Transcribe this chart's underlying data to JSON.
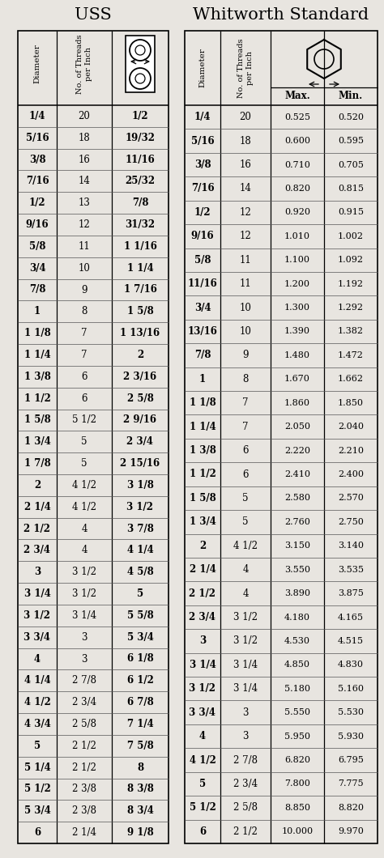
{
  "title_left": "USS",
  "title_right": "Whitworth Standard",
  "bg_color": "#e8e5e0",
  "uss_rows": [
    [
      "1/4",
      "20",
      "1/2"
    ],
    [
      "5/16",
      "18",
      "19/32"
    ],
    [
      "3/8",
      "16",
      "11/16"
    ],
    [
      "7/16",
      "14",
      "25/32"
    ],
    [
      "1/2",
      "13",
      "7/8"
    ],
    [
      "9/16",
      "12",
      "31/32"
    ],
    [
      "5/8",
      "11",
      "1 1/16"
    ],
    [
      "3/4",
      "10",
      "1 1/4"
    ],
    [
      "7/8",
      "9",
      "1 7/16"
    ],
    [
      "1",
      "8",
      "1 5/8"
    ],
    [
      "1 1/8",
      "7",
      "1 13/16"
    ],
    [
      "1 1/4",
      "7",
      "2"
    ],
    [
      "1 3/8",
      "6",
      "2 3/16"
    ],
    [
      "1 1/2",
      "6",
      "2 5/8"
    ],
    [
      "1 5/8",
      "5 1/2",
      "2 9/16"
    ],
    [
      "1 3/4",
      "5",
      "2 3/4"
    ],
    [
      "1 7/8",
      "5",
      "2 15/16"
    ],
    [
      "2",
      "4 1/2",
      "3 1/8"
    ],
    [
      "2 1/4",
      "4 1/2",
      "3 1/2"
    ],
    [
      "2 1/2",
      "4",
      "3 7/8"
    ],
    [
      "2 3/4",
      "4",
      "4 1/4"
    ],
    [
      "3",
      "3 1/2",
      "4 5/8"
    ],
    [
      "3 1/4",
      "3 1/2",
      "5"
    ],
    [
      "3 1/2",
      "3 1/4",
      "5 5/8"
    ],
    [
      "3 3/4",
      "3",
      "5 3/4"
    ],
    [
      "4",
      "3",
      "6 1/8"
    ],
    [
      "4 1/4",
      "2 7/8",
      "6 1/2"
    ],
    [
      "4 1/2",
      "2 3/4",
      "6 7/8"
    ],
    [
      "4 3/4",
      "2 5/8",
      "7 1/4"
    ],
    [
      "5",
      "2 1/2",
      "7 5/8"
    ],
    [
      "5 1/4",
      "2 1/2",
      "8"
    ],
    [
      "5 1/2",
      "2 3/8",
      "8 3/8"
    ],
    [
      "5 3/4",
      "2 3/8",
      "8 3/4"
    ],
    [
      "6",
      "2 1/4",
      "9 1/8"
    ]
  ],
  "ww_rows": [
    [
      "1/4",
      "20",
      "0.525",
      "0.520"
    ],
    [
      "5/16",
      "18",
      "0.600",
      "0.595"
    ],
    [
      "3/8",
      "16",
      "0.710",
      "0.705"
    ],
    [
      "7/16",
      "14",
      "0.820",
      "0.815"
    ],
    [
      "1/2",
      "12",
      "0.920",
      "0.915"
    ],
    [
      "9/16",
      "12",
      "1.010",
      "1.002"
    ],
    [
      "5/8",
      "11",
      "1.100",
      "1.092"
    ],
    [
      "11/16",
      "11",
      "1.200",
      "1.192"
    ],
    [
      "3/4",
      "10",
      "1.300",
      "1.292"
    ],
    [
      "13/16",
      "10",
      "1.390",
      "1.382"
    ],
    [
      "7/8",
      "9",
      "1.480",
      "1.472"
    ],
    [
      "1",
      "8",
      "1.670",
      "1.662"
    ],
    [
      "1 1/8",
      "7",
      "1.860",
      "1.850"
    ],
    [
      "1 1/4",
      "7",
      "2.050",
      "2.040"
    ],
    [
      "1 3/8",
      "6",
      "2.220",
      "2.210"
    ],
    [
      "1 1/2",
      "6",
      "2.410",
      "2.400"
    ],
    [
      "1 5/8",
      "5",
      "2.580",
      "2.570"
    ],
    [
      "1 3/4",
      "5",
      "2.760",
      "2.750"
    ],
    [
      "2",
      "4 1/2",
      "3.150",
      "3.140"
    ],
    [
      "2 1/4",
      "4",
      "3.550",
      "3.535"
    ],
    [
      "2 1/2",
      "4",
      "3.890",
      "3.875"
    ],
    [
      "2 3/4",
      "3 1/2",
      "4.180",
      "4.165"
    ],
    [
      "3",
      "3 1/2",
      "4.530",
      "4.515"
    ],
    [
      "3 1/4",
      "3 1/4",
      "4.850",
      "4.830"
    ],
    [
      "3 1/2",
      "3 1/4",
      "5.180",
      "5.160"
    ],
    [
      "3 3/4",
      "3",
      "5.550",
      "5.530"
    ],
    [
      "4",
      "3",
      "5.950",
      "5.930"
    ],
    [
      "4 1/2",
      "2 7/8",
      "6.820",
      "6.795"
    ],
    [
      "5",
      "2 3/4",
      "7.800",
      "7.775"
    ],
    [
      "5 1/2",
      "2 5/8",
      "8.850",
      "8.820"
    ],
    [
      "6",
      "2 1/2",
      "10.000",
      "9.970"
    ]
  ],
  "title_fontsize": 15,
  "header_fontsize": 7.5,
  "data_fontsize": 8.5
}
